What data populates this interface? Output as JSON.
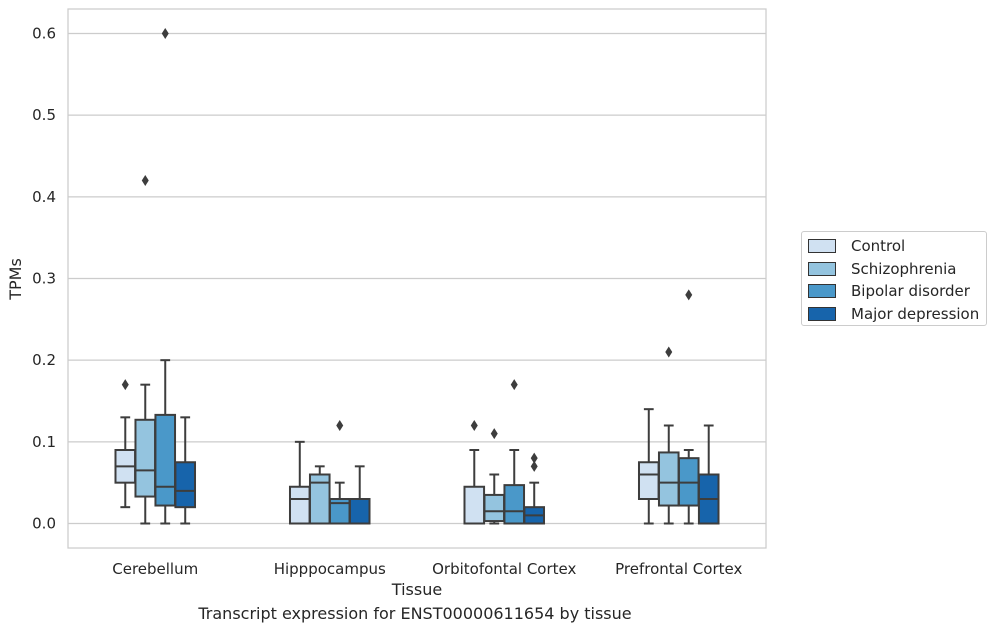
{
  "chart_data": {
    "type": "box",
    "title": "",
    "caption": "Transcript expression for ENST00000611654 by tissue",
    "xlabel": "Tissue",
    "ylabel": "TPMs",
    "ylim": [
      -0.03,
      0.63
    ],
    "yticks": [
      0.0,
      0.1,
      0.2,
      0.3,
      0.4,
      0.5,
      0.6
    ],
    "ytick_labels": [
      "0.0",
      "0.1",
      "0.2",
      "0.3",
      "0.4",
      "0.5",
      "0.6"
    ],
    "grid": "horizontal",
    "legend_position": "right-center-outside",
    "categories": [
      "Cerebellum",
      "Hipppocampus",
      "Orbitofontal Cortex",
      "Prefrontal Cortex"
    ],
    "series": [
      {
        "name": "Control",
        "color": "#d0e1f2",
        "boxes": [
          {
            "whislo": 0.02,
            "q1": 0.05,
            "med": 0.07,
            "q3": 0.09,
            "whishi": 0.13,
            "fliers": [
              0.17
            ]
          },
          {
            "whislo": 0.0,
            "q1": 0.0,
            "med": 0.03,
            "q3": 0.045,
            "whishi": 0.1,
            "fliers": []
          },
          {
            "whislo": 0.0,
            "q1": 0.0,
            "med": 0.0,
            "q3": 0.045,
            "whishi": 0.09,
            "fliers": [
              0.12
            ]
          },
          {
            "whislo": 0.0,
            "q1": 0.03,
            "med": 0.06,
            "q3": 0.075,
            "whishi": 0.14,
            "fliers": []
          }
        ]
      },
      {
        "name": "Schizophrenia",
        "color": "#94c4df",
        "boxes": [
          {
            "whislo": 0.0,
            "q1": 0.033,
            "med": 0.065,
            "q3": 0.127,
            "whishi": 0.17,
            "fliers": [
              0.42
            ]
          },
          {
            "whislo": 0.0,
            "q1": 0.0,
            "med": 0.05,
            "q3": 0.06,
            "whishi": 0.07,
            "fliers": []
          },
          {
            "whislo": 0.0,
            "q1": 0.003,
            "med": 0.015,
            "q3": 0.035,
            "whishi": 0.06,
            "fliers": [
              0.11
            ]
          },
          {
            "whislo": 0.0,
            "q1": 0.022,
            "med": 0.05,
            "q3": 0.087,
            "whishi": 0.12,
            "fliers": [
              0.21
            ]
          }
        ]
      },
      {
        "name": "Bipolar disorder",
        "color": "#4a98c9",
        "boxes": [
          {
            "whislo": 0.0,
            "q1": 0.022,
            "med": 0.045,
            "q3": 0.133,
            "whishi": 0.2,
            "fliers": [
              0.6
            ]
          },
          {
            "whislo": 0.0,
            "q1": 0.0,
            "med": 0.025,
            "q3": 0.03,
            "whishi": 0.05,
            "fliers": [
              0.12
            ]
          },
          {
            "whislo": 0.0,
            "q1": 0.0,
            "med": 0.015,
            "q3": 0.047,
            "whishi": 0.09,
            "fliers": [
              0.17
            ]
          },
          {
            "whislo": 0.0,
            "q1": 0.022,
            "med": 0.05,
            "q3": 0.08,
            "whishi": 0.09,
            "fliers": [
              0.28
            ]
          }
        ]
      },
      {
        "name": "Major depression",
        "color": "#1764ab",
        "boxes": [
          {
            "whislo": 0.0,
            "q1": 0.02,
            "med": 0.04,
            "q3": 0.075,
            "whishi": 0.13,
            "fliers": []
          },
          {
            "whislo": 0.0,
            "q1": 0.0,
            "med": 0.0,
            "q3": 0.03,
            "whishi": 0.07,
            "fliers": []
          },
          {
            "whislo": 0.0,
            "q1": 0.0,
            "med": 0.01,
            "q3": 0.02,
            "whishi": 0.05,
            "fliers": [
              0.07,
              0.08
            ]
          },
          {
            "whislo": 0.0,
            "q1": 0.0,
            "med": 0.03,
            "q3": 0.06,
            "whishi": 0.12,
            "fliers": []
          }
        ]
      }
    ]
  }
}
